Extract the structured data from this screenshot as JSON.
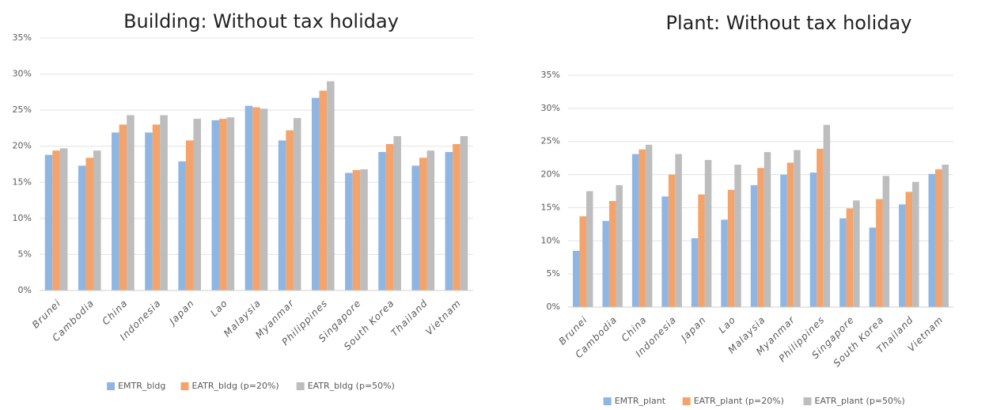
{
  "chart_data": [
    {
      "type": "bar",
      "title": "Building: Without tax holiday",
      "categories": [
        "Brunei",
        "Cambodia",
        "China",
        "Indonesia",
        "Japan",
        "Lao",
        "Malaysia",
        "Myanmar",
        "Philippines",
        "Singapore",
        "South Korea",
        "Thailand",
        "Vietnam"
      ],
      "series": [
        {
          "name": "EMTR_bldg",
          "color": "#8fb6e3",
          "values": [
            18.8,
            17.3,
            21.9,
            21.9,
            17.9,
            23.6,
            25.6,
            20.8,
            26.7,
            16.3,
            19.2,
            17.3,
            19.2
          ]
        },
        {
          "name": "EATR_bldg (p=20%)",
          "color": "#f4a36a",
          "values": [
            19.4,
            18.4,
            23.0,
            23.0,
            20.8,
            23.8,
            25.4,
            22.2,
            27.7,
            16.7,
            20.3,
            18.4,
            20.3
          ]
        },
        {
          "name": "EATR_bldg (p=50%)",
          "color": "#bdbdbd",
          "values": [
            19.7,
            19.4,
            24.3,
            24.3,
            23.8,
            24.0,
            25.2,
            23.9,
            29.0,
            16.8,
            21.4,
            19.4,
            21.4
          ]
        }
      ],
      "ylim": [
        0,
        35
      ],
      "yticks": [
        {
          "value": 0,
          "label": "0%"
        },
        {
          "value": 5,
          "label": "5%"
        },
        {
          "value": 10,
          "label": "10%"
        },
        {
          "value": 15,
          "label": "15%"
        },
        {
          "value": 20,
          "label": "20%"
        },
        {
          "value": 25,
          "label": "25%"
        },
        {
          "value": 30,
          "label": "30%"
        },
        {
          "value": 35,
          "label": "35%"
        }
      ],
      "grid": true,
      "legend": "bottom"
    },
    {
      "type": "bar",
      "title": "Plant: Without tax holiday",
      "categories": [
        "Brunei",
        "Cambodia",
        "China",
        "Indonesia",
        "Japan",
        "Lao",
        "Malaysia",
        "Myanmar",
        "Philippines",
        "Singapore",
        "South Korea",
        "Thailand",
        "Vietnam"
      ],
      "series": [
        {
          "name": "EMTR_plant",
          "color": "#8fb6e3",
          "values": [
            8.5,
            13.0,
            23.1,
            16.7,
            10.4,
            13.2,
            18.4,
            20.0,
            20.3,
            13.4,
            12.0,
            15.5,
            20.1
          ]
        },
        {
          "name": "EATR_plant (p=20%)",
          "color": "#f4a36a",
          "values": [
            13.7,
            16.0,
            23.8,
            20.0,
            17.0,
            17.7,
            21.0,
            21.8,
            23.9,
            14.9,
            16.3,
            17.4,
            20.8
          ]
        },
        {
          "name": "EATR_plant (p=50%)",
          "color": "#bdbdbd",
          "values": [
            17.5,
            18.4,
            24.5,
            23.1,
            22.2,
            21.5,
            23.4,
            23.7,
            27.5,
            16.1,
            19.8,
            18.9,
            21.5
          ]
        }
      ],
      "ylim": [
        0,
        35
      ],
      "yticks": [
        {
          "value": 0,
          "label": "0%"
        },
        {
          "value": 5,
          "label": "5%"
        },
        {
          "value": 10,
          "label": "10%"
        },
        {
          "value": 15,
          "label": "15%"
        },
        {
          "value": 20,
          "label": "20%"
        },
        {
          "value": 25,
          "label": "25%"
        },
        {
          "value": 30,
          "label": "30%"
        },
        {
          "value": 35,
          "label": "35%"
        }
      ],
      "grid": true,
      "legend": "bottom"
    }
  ]
}
